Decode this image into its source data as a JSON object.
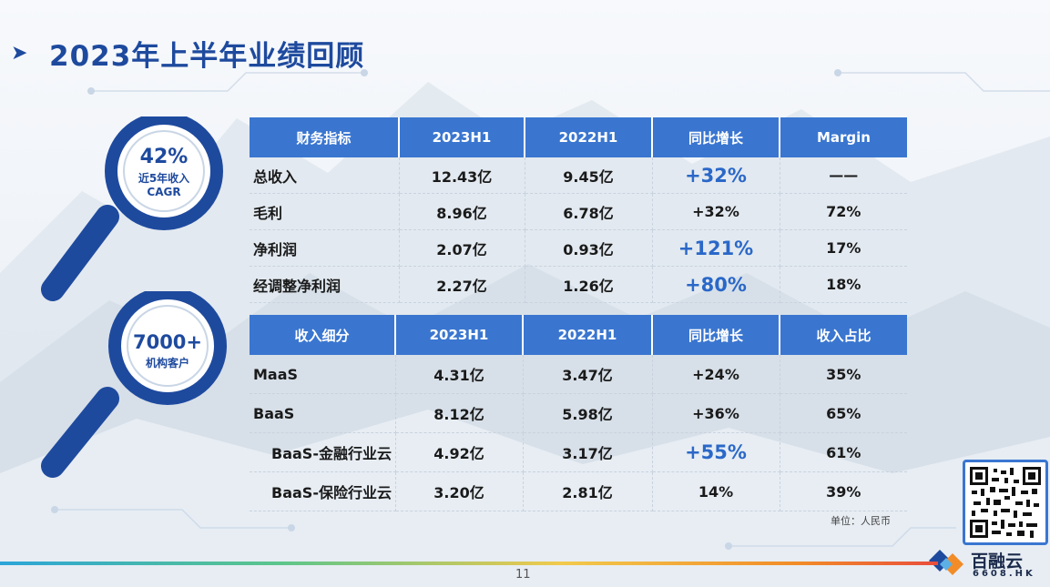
{
  "title": "2023年上半年业绩回顾",
  "badges": [
    {
      "value": "42%",
      "line1": "近5年收入",
      "line2": "CAGR"
    },
    {
      "value": "7000+",
      "line1": "机构客户",
      "line2": ""
    }
  ],
  "table_financial": {
    "headers": [
      "财务指标",
      "2023H1",
      "2022H1",
      "同比增长",
      "Margin"
    ],
    "rows": [
      [
        "总收入",
        "12.43亿",
        "9.45亿",
        "+32%",
        "——"
      ],
      [
        "毛利",
        "8.96亿",
        "6.78亿",
        "+32%",
        "72%"
      ],
      [
        "净利润",
        "2.07亿",
        "0.93亿",
        "+121%",
        "17%"
      ],
      [
        "经调整净利润",
        "2.27亿",
        "1.26亿",
        "+80%",
        "18%"
      ]
    ]
  },
  "table_revenue": {
    "headers": [
      "收入细分",
      "2023H1",
      "2022H1",
      "同比增长",
      "收入占比"
    ],
    "rows": [
      [
        "MaaS",
        "4.31亿",
        "3.47亿",
        "+24%",
        "35%"
      ],
      [
        "BaaS",
        "8.12亿",
        "5.98亿",
        "+36%",
        "65%"
      ],
      [
        "BaaS-金融行业云",
        "4.92亿",
        "3.17亿",
        "+55%",
        "61%"
      ],
      [
        "BaaS-保险行业云",
        "3.20亿",
        "2.81亿",
        "14%",
        "39%"
      ]
    ]
  },
  "unit_note": "单位：人民币",
  "brand": {
    "name": "百融云",
    "code": "6608.HK"
  },
  "page_number": "11",
  "colors": {
    "primary": "#1e4a9e",
    "header": "#3a76d0",
    "highlight": "#2a68c8"
  }
}
